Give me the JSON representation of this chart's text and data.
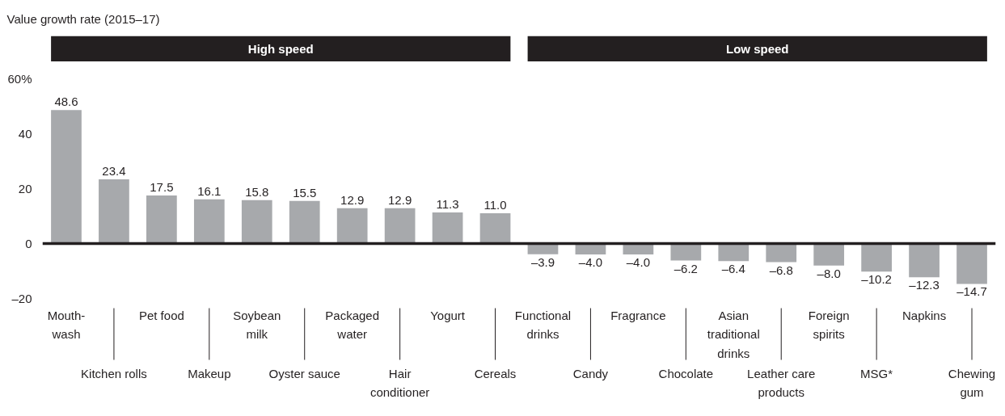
{
  "chart_data": {
    "type": "bar",
    "ylabel": "Value growth rate (2015–17)",
    "categories": [
      "Mouth-\nwash",
      "Kitchen rolls",
      "Pet food",
      "Makeup",
      "Soybean\nmilk",
      "Oyster sauce",
      "Packaged\nwater",
      "Hair\nconditioner",
      "Yogurt",
      "Cereals",
      "Functional\ndrinks",
      "Candy",
      "Fragrance",
      "Chocolate",
      "Asian\ntraditional\ndrinks",
      "Leather care\nproducts",
      "Foreign\nspirits",
      "MSG*",
      "Napkins",
      "Chewing\ngum"
    ],
    "values": [
      48.6,
      23.4,
      17.5,
      16.1,
      15.8,
      15.5,
      12.9,
      12.9,
      11.3,
      11.0,
      -3.9,
      -4.0,
      -4.0,
      -6.2,
      -6.4,
      -6.8,
      -8.0,
      -10.2,
      -12.3,
      -14.7
    ],
    "value_labels": [
      "48.6",
      "23.4",
      "17.5",
      "16.1",
      "15.8",
      "15.5",
      "12.9",
      "12.9",
      "11.3",
      "11.0",
      "–3.9",
      "–4.0",
      "–4.0",
      "–6.2",
      "–6.4",
      "–6.8",
      "–8.0",
      "–10.2",
      "–12.3",
      "–14.7"
    ],
    "color": "#a7a9ac",
    "ylim": [
      -20,
      60
    ],
    "yticks": [
      {
        "value": 60,
        "label": "60%"
      },
      40,
      20,
      0,
      {
        "value": -20,
        "label": "–20"
      }
    ],
    "ref_lines": [
      {
        "axis": "y",
        "value": 0,
        "color": "#231f20"
      }
    ],
    "annotations": [
      "High speed",
      "Low speed"
    ]
  }
}
